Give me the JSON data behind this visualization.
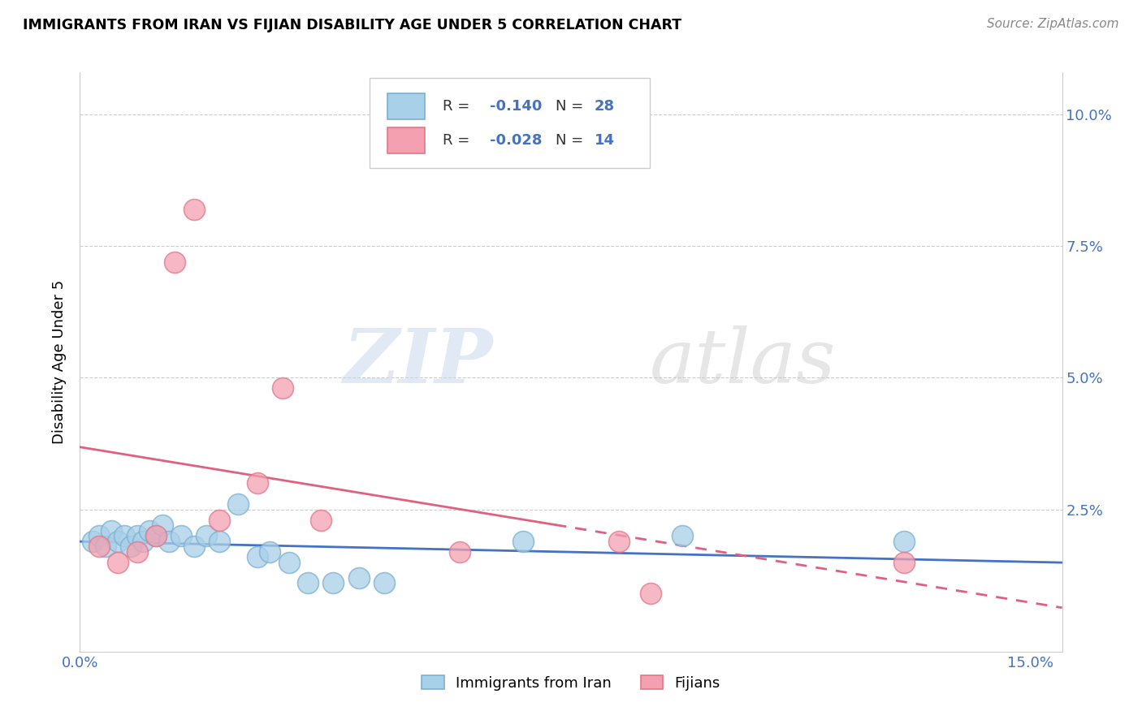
{
  "title": "IMMIGRANTS FROM IRAN VS FIJIAN DISABILITY AGE UNDER 5 CORRELATION CHART",
  "source": "Source: ZipAtlas.com",
  "ylabel": "Disability Age Under 5",
  "xlim": [
    0.0,
    0.155
  ],
  "ylim": [
    -0.002,
    0.108
  ],
  "blue_R": "-0.140",
  "blue_N": "28",
  "pink_R": "-0.028",
  "pink_N": "14",
  "blue_scatter_x": [
    0.002,
    0.003,
    0.004,
    0.005,
    0.006,
    0.007,
    0.008,
    0.009,
    0.01,
    0.011,
    0.012,
    0.013,
    0.014,
    0.016,
    0.018,
    0.02,
    0.022,
    0.025,
    0.028,
    0.03,
    0.033,
    0.036,
    0.04,
    0.044,
    0.048,
    0.07,
    0.095,
    0.13
  ],
  "blue_scatter_y": [
    0.019,
    0.02,
    0.018,
    0.021,
    0.019,
    0.02,
    0.018,
    0.02,
    0.019,
    0.021,
    0.02,
    0.022,
    0.019,
    0.02,
    0.018,
    0.02,
    0.019,
    0.026,
    0.016,
    0.017,
    0.015,
    0.011,
    0.011,
    0.012,
    0.011,
    0.019,
    0.02,
    0.019
  ],
  "pink_scatter_x": [
    0.003,
    0.006,
    0.009,
    0.012,
    0.015,
    0.018,
    0.022,
    0.028,
    0.032,
    0.038,
    0.06,
    0.085,
    0.09,
    0.13
  ],
  "pink_scatter_y": [
    0.018,
    0.015,
    0.017,
    0.02,
    0.072,
    0.082,
    0.023,
    0.03,
    0.048,
    0.023,
    0.017,
    0.019,
    0.009,
    0.015
  ],
  "watermark_zip": "ZIP",
  "watermark_atlas": "atlas",
  "legend_label_blue": "Immigrants from Iran",
  "legend_label_pink": "Fijians",
  "blue_scatter_color": "#a8d0e8",
  "blue_edge_color": "#7ab0d0",
  "pink_scatter_color": "#f4a0b0",
  "pink_edge_color": "#e07888",
  "blue_line_color": "#4472c4",
  "pink_line_color": "#e06080",
  "grid_color": "#cccccc",
  "tick_color": "#4472c4"
}
